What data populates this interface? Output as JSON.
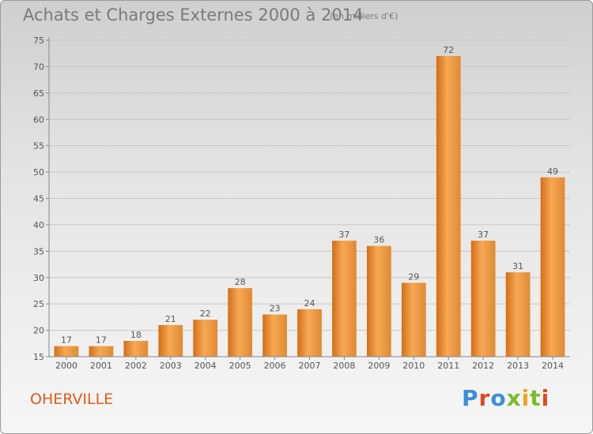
{
  "header": {
    "title": "Achats et Charges Externes 2000 à 2014",
    "subtitle": "(en milliers d'€)"
  },
  "footer": {
    "city": "OHERVILLE",
    "brand": "Proxiti",
    "brand_colors": [
      "#3a8fd8",
      "#e0491c",
      "#3a8fd8",
      "#7dbb2a",
      "#f2a31b",
      "#7dbb2a",
      "#e0491c"
    ]
  },
  "chart_data": {
    "type": "bar",
    "title": "Achats et Charges Externes 2000 à 2014",
    "xlabel": "",
    "ylabel": "",
    "categories": [
      "2000",
      "2001",
      "2002",
      "2003",
      "2004",
      "2005",
      "2006",
      "2007",
      "2008",
      "2009",
      "2010",
      "2011",
      "2012",
      "2013",
      "2014"
    ],
    "values": [
      17,
      17,
      18,
      21,
      22,
      28,
      23,
      24,
      37,
      36,
      29,
      72,
      37,
      31,
      49
    ],
    "ylim": [
      15,
      75
    ],
    "yticks": [
      15,
      20,
      25,
      30,
      35,
      40,
      45,
      50,
      55,
      60,
      65,
      70,
      75
    ],
    "grid": true,
    "bar_color_light": "#f7a855",
    "bar_color_dark": "#d26f17"
  }
}
